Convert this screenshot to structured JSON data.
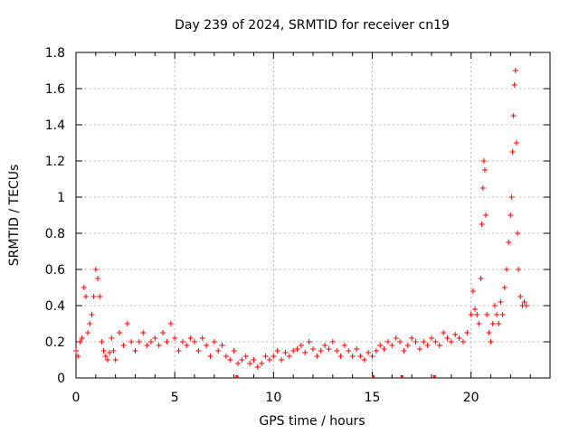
{
  "chart_data": {
    "type": "scatter",
    "title": "Day 239 of 2024, SRMTID for receiver cn19",
    "xlabel": "GPS time / hours",
    "ylabel": "SRMTID / TECUs",
    "xlim": [
      0,
      24
    ],
    "ylim": [
      0,
      1.8
    ],
    "xticks": [
      0,
      5,
      10,
      15,
      20
    ],
    "xtick_labels": [
      "0",
      "5",
      "10",
      "15",
      "20"
    ],
    "yticks": [
      0,
      0.2,
      0.4,
      0.6,
      0.8,
      1.0,
      1.2,
      1.4,
      1.6,
      1.8
    ],
    "ytick_labels": [
      "0",
      "0.2",
      "0.4",
      "0.6",
      "0.8",
      "1",
      "1.2",
      "1.4",
      "1.6",
      "1.8"
    ],
    "grid": true,
    "marker": "+",
    "color": "#ff0000",
    "series": [
      {
        "name": "SRMTID",
        "x": [
          0.0,
          0.1,
          0.2,
          0.3,
          0.4,
          0.5,
          0.6,
          0.7,
          0.8,
          0.9,
          1.0,
          1.1,
          1.2,
          1.3,
          1.4,
          1.5,
          1.6,
          1.7,
          1.8,
          1.9,
          2.0,
          2.2,
          2.4,
          2.6,
          2.8,
          3.0,
          3.2,
          3.4,
          3.6,
          3.8,
          4.0,
          4.2,
          4.4,
          4.6,
          4.8,
          5.0,
          5.2,
          5.4,
          5.6,
          5.8,
          6.0,
          6.2,
          6.4,
          6.6,
          6.8,
          7.0,
          7.2,
          7.4,
          7.6,
          7.8,
          8.0,
          8.2,
          8.4,
          8.6,
          8.8,
          9.0,
          9.2,
          9.4,
          9.6,
          9.8,
          10.0,
          10.2,
          10.4,
          10.6,
          10.8,
          11.0,
          11.2,
          11.4,
          11.6,
          11.8,
          12.0,
          12.2,
          12.4,
          12.6,
          12.8,
          13.0,
          13.2,
          13.4,
          13.6,
          13.8,
          14.0,
          14.2,
          14.4,
          14.6,
          14.8,
          15.0,
          15.2,
          15.4,
          15.6,
          15.8,
          16.0,
          16.2,
          16.4,
          16.6,
          16.8,
          17.0,
          17.2,
          17.4,
          17.6,
          17.8,
          18.0,
          18.2,
          18.4,
          18.6,
          18.8,
          19.0,
          19.2,
          19.4,
          19.6,
          19.8,
          20.0,
          20.1,
          20.2,
          20.3,
          20.4,
          20.5,
          20.55,
          20.6,
          20.65,
          20.7,
          20.75,
          20.8,
          20.9,
          21.0,
          21.1,
          21.2,
          21.3,
          21.4,
          21.5,
          21.6,
          21.7,
          21.8,
          21.9,
          22.0,
          22.05,
          22.1,
          22.15,
          22.2,
          22.25,
          22.3,
          22.35,
          22.4,
          22.5,
          22.6,
          22.7,
          22.8
        ],
        "y": [
          0.15,
          0.12,
          0.2,
          0.22,
          0.5,
          0.45,
          0.25,
          0.3,
          0.35,
          0.45,
          0.6,
          0.55,
          0.45,
          0.2,
          0.15,
          0.12,
          0.1,
          0.14,
          0.22,
          0.15,
          0.1,
          0.25,
          0.18,
          0.3,
          0.2,
          0.15,
          0.2,
          0.25,
          0.18,
          0.2,
          0.22,
          0.18,
          0.25,
          0.2,
          0.3,
          0.22,
          0.15,
          0.2,
          0.18,
          0.22,
          0.2,
          0.15,
          0.22,
          0.18,
          0.12,
          0.2,
          0.15,
          0.18,
          0.12,
          0.1,
          0.15,
          0.08,
          0.1,
          0.12,
          0.08,
          0.1,
          0.06,
          0.08,
          0.12,
          0.1,
          0.12,
          0.15,
          0.1,
          0.14,
          0.12,
          0.15,
          0.16,
          0.18,
          0.14,
          0.2,
          0.16,
          0.12,
          0.15,
          0.18,
          0.16,
          0.2,
          0.15,
          0.12,
          0.18,
          0.15,
          0.12,
          0.16,
          0.12,
          0.1,
          0.14,
          0.12,
          0.15,
          0.18,
          0.16,
          0.2,
          0.18,
          0.22,
          0.2,
          0.15,
          0.18,
          0.22,
          0.2,
          0.16,
          0.2,
          0.18,
          0.22,
          0.2,
          0.18,
          0.25,
          0.22,
          0.2,
          0.24,
          0.22,
          0.2,
          0.25,
          0.35,
          0.48,
          0.38,
          0.35,
          0.3,
          0.55,
          0.85,
          1.05,
          1.2,
          1.15,
          0.9,
          0.35,
          0.25,
          0.2,
          0.3,
          0.4,
          0.35,
          0.3,
          0.42,
          0.35,
          0.5,
          0.6,
          0.75,
          0.9,
          1.0,
          1.25,
          1.45,
          1.62,
          1.7,
          1.3,
          0.8,
          0.6,
          0.45,
          0.4,
          0.42,
          0.4
        ]
      }
    ],
    "minute_marks_x": [
      8.15,
      15.05,
      16.5,
      18.15
    ]
  }
}
